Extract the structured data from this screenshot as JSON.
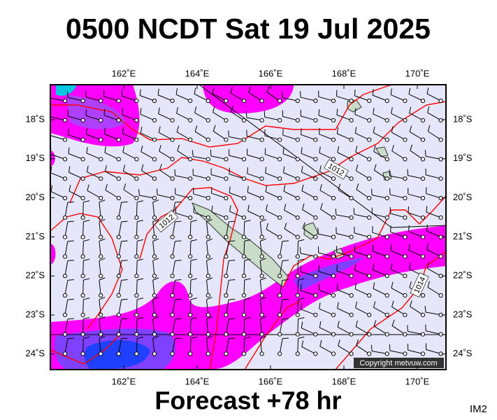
{
  "header": {
    "title": "0500 NCDT Sat 19 Jul 2025"
  },
  "map": {
    "lon_labels": [
      "162˚E",
      "164˚E",
      "166˚E",
      "168˚E",
      "170˚E"
    ],
    "lat_labels": [
      "18˚S",
      "19˚S",
      "20˚S",
      "21˚S",
      "22˚S",
      "23˚S",
      "24˚S"
    ],
    "isobar_labels": [
      "1012",
      "1012",
      "1014"
    ],
    "copyright": "Copyright metvuw.com"
  },
  "footer": {
    "forecast": "Forecast +78 hr",
    "code": "IM2"
  }
}
